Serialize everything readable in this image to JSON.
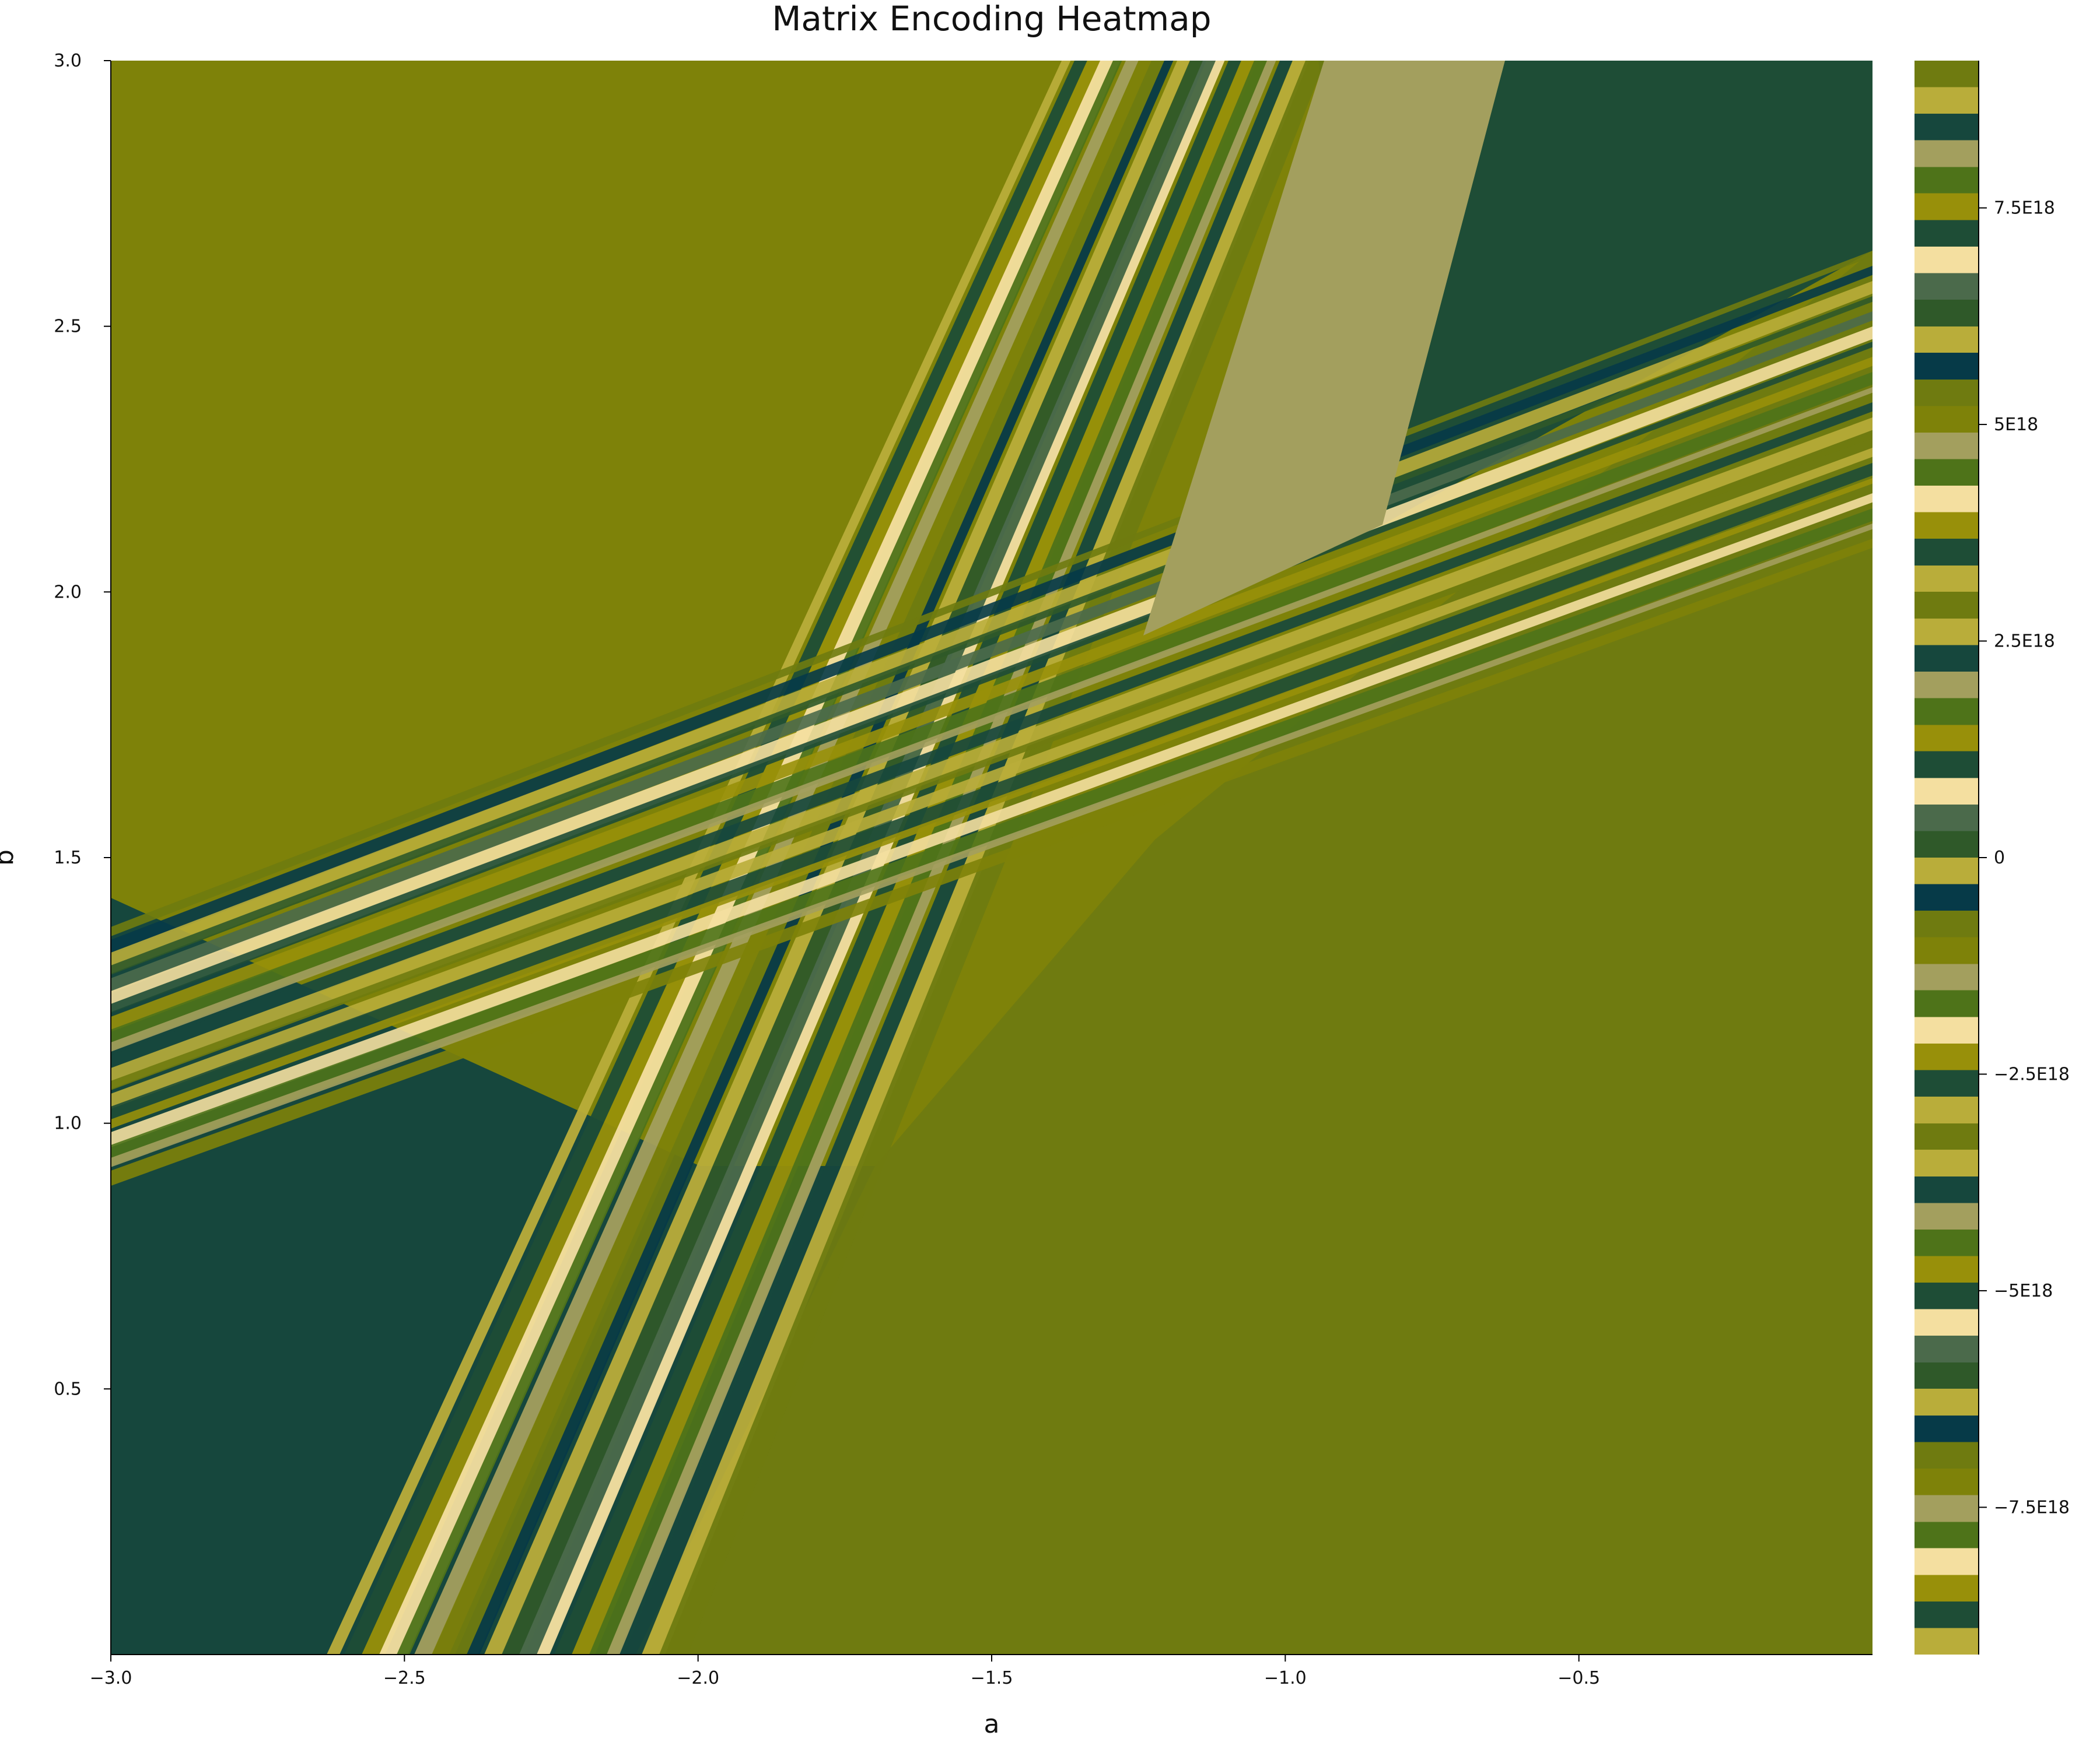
{
  "chart_data": {
    "type": "heatmap",
    "title": "Matrix Encoding Heatmap",
    "xlabel": "a",
    "ylabel": "b",
    "xlim": [
      -3.0,
      0.0
    ],
    "ylim": [
      0.0,
      3.0
    ],
    "x_ticks": [
      {
        "value": -3.0,
        "label": "−3.0"
      },
      {
        "value": -2.5,
        "label": "−2.5"
      },
      {
        "value": -2.0,
        "label": "−2.0"
      },
      {
        "value": -1.5,
        "label": "−1.5"
      },
      {
        "value": -1.0,
        "label": "−1.0"
      },
      {
        "value": -0.5,
        "label": "−0.5"
      }
    ],
    "y_ticks": [
      {
        "value": 0.5,
        "label": "0.5"
      },
      {
        "value": 1.0,
        "label": "1.0"
      },
      {
        "value": 1.5,
        "label": "1.5"
      },
      {
        "value": 2.0,
        "label": "2.0"
      },
      {
        "value": 2.5,
        "label": "2.5"
      },
      {
        "value": 3.0,
        "label": "3.0"
      }
    ],
    "colorbar": {
      "range": [
        -9.2e+18,
        9.2e+18
      ],
      "ticks": [
        {
          "value": -7.5e+18,
          "label": "−7.5E18"
        },
        {
          "value": -5e+18,
          "label": "−5E18"
        },
        {
          "value": -2.5e+18,
          "label": "−2.5E18"
        },
        {
          "value": 0,
          "label": "0"
        },
        {
          "value": 2.5e+18,
          "label": "2.5E18"
        },
        {
          "value": 5e+18,
          "label": "5E18"
        },
        {
          "value": 7.5e+18,
          "label": "7.5E18"
        }
      ]
    },
    "palette": [
      "#7e8209",
      "#1e4d36",
      "#4e7319",
      "#b9ad3a",
      "#f4dfa0",
      "#a39f5e",
      "#063a48",
      "#98900a",
      "#4b6a4b",
      "#6f7b10",
      "#2f5929",
      "#16473d"
    ],
    "regions": [
      {
        "name": "upper-left field",
        "color": "#7e8209"
      },
      {
        "name": "upper-right field",
        "color": "#1e4d36"
      },
      {
        "name": "lower-right field",
        "color": "#6f7b10"
      },
      {
        "name": "lower-left field",
        "color": "#16473d"
      }
    ],
    "grid": false
  }
}
